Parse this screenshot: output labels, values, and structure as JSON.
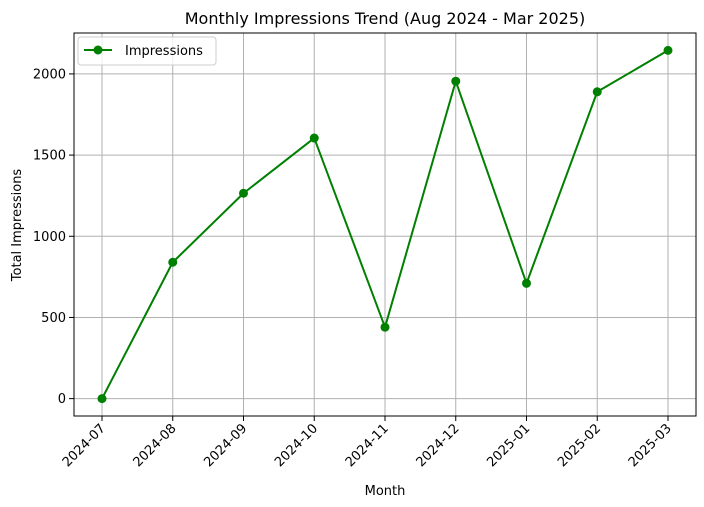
{
  "chart_data": {
    "type": "line",
    "title": "Monthly Impressions Trend (Aug 2024 - Mar 2025)",
    "xlabel": "Month",
    "ylabel": "Total Impressions",
    "categories": [
      "2024-07",
      "2024-08",
      "2024-09",
      "2024-10",
      "2024-11",
      "2024-12",
      "2025-01",
      "2025-02",
      "2025-03"
    ],
    "series": [
      {
        "name": "Impressions",
        "values": [
          0,
          840,
          1265,
          1605,
          440,
          1955,
          710,
          1890,
          2145
        ],
        "color": "#008000",
        "marker": "circle"
      }
    ],
    "yticks": [
      0,
      500,
      1000,
      1500,
      2000
    ],
    "ylim": [
      -107,
      2252
    ],
    "grid": true,
    "legend_position": "top-left",
    "xtick_rotation": 45
  }
}
